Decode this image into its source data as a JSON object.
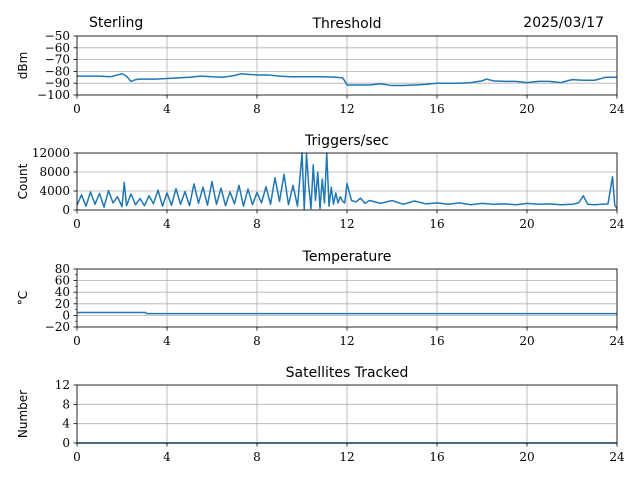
{
  "header": {
    "site": "Sterling",
    "date": "2025/03/17"
  },
  "chart_data": [
    {
      "type": "line",
      "title": "Threshold",
      "xlabel": "",
      "ylabel": "dBm",
      "xlim": [
        0,
        24
      ],
      "ylim": [
        -100,
        -50
      ],
      "xticks": [
        0,
        4,
        8,
        12,
        16,
        20,
        24
      ],
      "yticks": [
        -100,
        -90,
        -80,
        -70,
        -60,
        -50
      ],
      "ytick_labels": [
        "−100",
        "−90",
        "−80",
        "−70",
        "−60",
        "−50"
      ],
      "grid": true,
      "color": "#1f77b4",
      "series": [
        {
          "x": [
            0,
            0.5,
            1,
            1.5,
            2,
            2.2,
            2.4,
            2.6,
            2.8,
            3,
            3.5,
            4,
            4.5,
            5,
            5.5,
            6,
            6.5,
            7,
            7.3,
            7.6,
            8,
            8.5,
            9,
            9.5,
            10,
            10.5,
            11,
            11.5,
            11.8,
            11.9,
            12,
            12.5,
            13,
            13.5,
            14,
            14.5,
            15,
            15.5,
            16,
            16.5,
            17,
            17.5,
            18,
            18.2,
            18.5,
            19,
            19.5,
            20,
            20.5,
            21,
            21.5,
            22,
            22.5,
            23,
            23.5,
            24
          ],
          "y": [
            -84,
            -84,
            -84,
            -84.5,
            -82,
            -84,
            -88.5,
            -87,
            -86.5,
            -86.5,
            -86.5,
            -86,
            -85.5,
            -85,
            -84,
            -84.5,
            -85,
            -83.5,
            -82,
            -82.5,
            -83,
            -83,
            -84,
            -84.5,
            -84.5,
            -84.5,
            -84.5,
            -85,
            -85.5,
            -88,
            -91.5,
            -91.5,
            -91.5,
            -90.5,
            -92,
            -92,
            -91.5,
            -91,
            -90,
            -90,
            -90,
            -89.5,
            -88,
            -86.5,
            -88,
            -88.5,
            -88.5,
            -89.5,
            -88.5,
            -88.5,
            -89.5,
            -87,
            -87.5,
            -87.5,
            -85,
            -85
          ]
        }
      ]
    },
    {
      "type": "line",
      "title": "Triggers/sec",
      "xlabel": "",
      "ylabel": "Count",
      "xlim": [
        0,
        24
      ],
      "ylim": [
        0,
        12000
      ],
      "xticks": [
        0,
        4,
        8,
        12,
        16,
        20,
        24
      ],
      "yticks": [
        0,
        4000,
        8000,
        12000
      ],
      "ytick_labels": [
        "0",
        "4000",
        "8000",
        "12000"
      ],
      "grid": true,
      "color": "#1f77b4",
      "series": [
        {
          "x": [
            0,
            0.2,
            0.4,
            0.6,
            0.8,
            1.0,
            1.2,
            1.4,
            1.6,
            1.8,
            2.0,
            2.1,
            2.2,
            2.4,
            2.6,
            2.8,
            3.0,
            3.2,
            3.4,
            3.6,
            3.8,
            4.0,
            4.2,
            4.4,
            4.6,
            4.8,
            5.0,
            5.2,
            5.4,
            5.6,
            5.8,
            6.0,
            6.2,
            6.4,
            6.6,
            6.8,
            7.0,
            7.2,
            7.4,
            7.6,
            7.8,
            8.0,
            8.2,
            8.4,
            8.6,
            8.8,
            9.0,
            9.2,
            9.4,
            9.6,
            9.8,
            10.0,
            10.1,
            10.2,
            10.3,
            10.4,
            10.5,
            10.6,
            10.7,
            10.8,
            10.9,
            11.0,
            11.1,
            11.2,
            11.3,
            11.4,
            11.5,
            11.6,
            11.7,
            11.8,
            11.9,
            12.0,
            12.2,
            12.4,
            12.6,
            12.8,
            13.0,
            13.5,
            14.0,
            14.5,
            15.0,
            15.5,
            16.0,
            16.5,
            17.0,
            17.5,
            18.0,
            18.5,
            19.0,
            19.5,
            20.0,
            20.5,
            21.0,
            21.5,
            22.0,
            22.3,
            22.5,
            22.7,
            23.0,
            23.3,
            23.6,
            23.8,
            23.9,
            24.0
          ],
          "y": [
            1000,
            3200,
            800,
            3800,
            1200,
            3500,
            600,
            4100,
            1500,
            2800,
            700,
            5800,
            900,
            3400,
            1100,
            2400,
            900,
            3000,
            1300,
            4200,
            800,
            3600,
            1000,
            4500,
            1200,
            3900,
            900,
            5500,
            1400,
            4800,
            1000,
            6000,
            1200,
            4600,
            900,
            3800,
            1300,
            5200,
            800,
            4400,
            1100,
            3700,
            1500,
            4900,
            1200,
            6800,
            1800,
            7500,
            1100,
            5200,
            800,
            12000,
            200,
            11800,
            5000,
            300,
            9500,
            2000,
            8000,
            300,
            6500,
            1500,
            12000,
            800,
            4800,
            1200,
            3600,
            1500,
            2800,
            1900,
            1500,
            5600,
            2000,
            1700,
            2500,
            1400,
            2000,
            1400,
            2000,
            1200,
            1900,
            1300,
            1500,
            1200,
            1500,
            1100,
            1400,
            1200,
            1300,
            1100,
            1400,
            1200,
            1300,
            1100,
            1200,
            1500,
            3000,
            1200,
            1100,
            1200,
            1300,
            7000,
            1000,
            300
          ]
        }
      ]
    },
    {
      "type": "line",
      "title": "Temperature",
      "xlabel": "",
      "ylabel": "°C",
      "xlim": [
        0,
        24
      ],
      "ylim": [
        -20,
        80
      ],
      "xticks": [
        0,
        4,
        8,
        12,
        16,
        20,
        24
      ],
      "yticks": [
        -20,
        0,
        20,
        40,
        60,
        80
      ],
      "ytick_labels": [
        "−20",
        "0",
        "20",
        "40",
        "60",
        "80"
      ],
      "minor_yticks": [
        -10,
        10,
        30,
        50,
        70
      ],
      "grid": true,
      "color": "#1f77b4",
      "series": [
        {
          "x": [
            0,
            3.05,
            3.1,
            24
          ],
          "y": [
            5,
            5,
            3,
            3
          ]
        }
      ]
    },
    {
      "type": "line",
      "title": "Satellites Tracked",
      "xlabel": "",
      "ylabel": "Number",
      "xlim": [
        0,
        24
      ],
      "ylim": [
        0,
        12
      ],
      "xticks": [
        0,
        4,
        8,
        12,
        16,
        20,
        24
      ],
      "yticks": [
        0,
        4,
        8,
        12
      ],
      "ytick_labels": [
        "0",
        "4",
        "8",
        "12"
      ],
      "grid": true,
      "color": "#1f77b4",
      "series": [
        {
          "x": [
            0,
            24
          ],
          "y": [
            0,
            0
          ]
        }
      ]
    }
  ]
}
